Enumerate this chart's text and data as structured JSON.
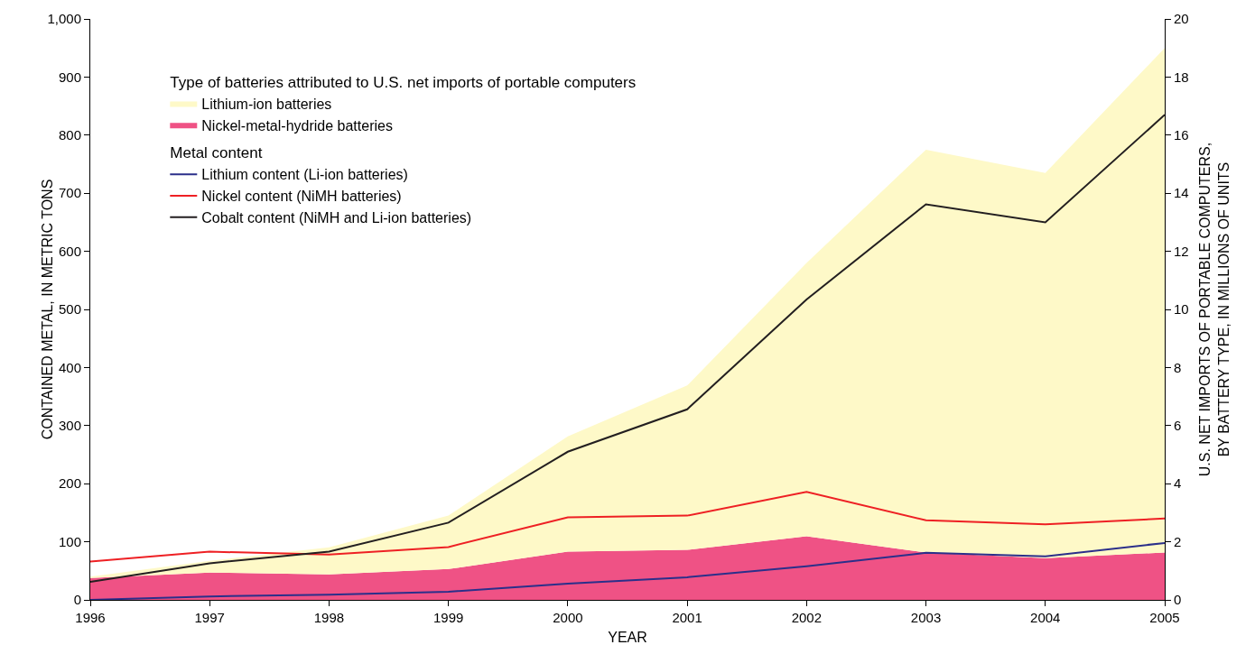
{
  "chart_data": {
    "type": "line",
    "xlabel": "YEAR",
    "ylabel": "CONTAINED METAL, IN METRIC TONS",
    "y2label": "U.S. NET IMPORTS OF PORTABLE COMPUTERS,\nBY BATTERY TYPE, IN MILLIONS OF UNITS",
    "legend_title": "Type of batteries attributed to U.S. net imports of portable computers",
    "annotations": [
      "Metal content"
    ],
    "x": [
      1996,
      1997,
      1998,
      1999,
      2000,
      2001,
      2002,
      2003,
      2004,
      2005
    ],
    "xlim": [
      1996,
      2005
    ],
    "xticks": [
      1996,
      1997,
      1998,
      1999,
      2000,
      2001,
      2002,
      2003,
      2004,
      2005
    ],
    "ylim": [
      0,
      1000
    ],
    "yticks": [
      0,
      100,
      200,
      300,
      400,
      500,
      600,
      700,
      800,
      900,
      {
        "value": 1000,
        "label": "1,000"
      }
    ],
    "y2lim": [
      0,
      20
    ],
    "y2ticks": [
      0,
      2,
      4,
      6,
      8,
      10,
      12,
      14,
      16,
      18,
      20
    ],
    "stacked": true,
    "grid": false,
    "legend": "top left",
    "marker": "none",
    "line_style": "solid",
    "series": [
      {
        "name": "Nickel-metal-hydride batteries",
        "type": "area",
        "axis": "y2",
        "color": "#ef5285",
        "values": [
          0.75,
          0.94,
          0.88,
          1.06,
          1.66,
          1.72,
          2.19,
          1.63,
          1.44,
          1.63
        ]
      },
      {
        "name": "Lithium-ion batteries",
        "type": "area",
        "axis": "y2",
        "color": "#fef9c8",
        "values": [
          0.05,
          0.4,
          0.93,
          1.84,
          3.97,
          5.66,
          9.41,
          13.87,
          13.26,
          17.37
        ]
      },
      {
        "name": "Lithium content (Li-ion batteries)",
        "color": "#2b2f8a",
        "values": [
          0,
          6,
          9,
          14,
          28,
          39,
          58,
          81,
          75,
          98
        ]
      },
      {
        "name": "Nickel content (NiMH batteries)",
        "color": "#ee2024",
        "values": [
          66,
          83,
          78,
          91,
          142,
          145,
          186,
          137,
          130,
          140
        ]
      },
      {
        "name": "Cobalt content (NiMH and Li-ion batteries)",
        "color": "#231f20",
        "values": [
          31,
          63,
          83,
          133,
          255,
          328,
          517,
          681,
          650,
          835
        ]
      }
    ]
  }
}
